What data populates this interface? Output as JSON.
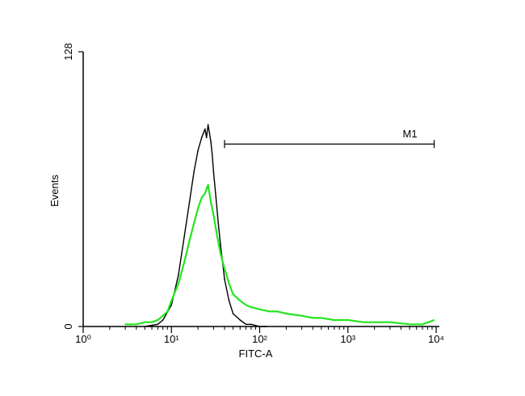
{
  "chart_data": {
    "type": "histogram",
    "xlabel": "FITC-A",
    "ylabel": "Events",
    "x_scale": "log",
    "xlim": [
      1,
      10000
    ],
    "ylim": [
      0,
      128
    ],
    "x_ticks": [
      {
        "value": 1,
        "label": "10⁰"
      },
      {
        "value": 10,
        "label": "10¹"
      },
      {
        "value": 100,
        "label": "10²"
      },
      {
        "value": 1000,
        "label": "10³"
      },
      {
        "value": 10000,
        "label": "10⁴"
      }
    ],
    "y_ticks": [
      {
        "value": 0,
        "label": "0"
      },
      {
        "value": 128,
        "label": "128"
      }
    ],
    "grid": false,
    "colors": {
      "control": "#000000",
      "sample": "#22e61e"
    },
    "series": [
      {
        "color": "#000000",
        "x": [
          5,
          7,
          8,
          10,
          12,
          14,
          16,
          18,
          20,
          22,
          24,
          25,
          26,
          27,
          28,
          29,
          30,
          32,
          34,
          36,
          38,
          40,
          45,
          50,
          60,
          70,
          80,
          100,
          120
        ],
        "y": [
          0,
          1,
          3,
          10,
          24,
          42,
          58,
          72,
          82,
          88,
          92,
          88,
          94,
          90,
          86,
          80,
          72,
          60,
          48,
          38,
          30,
          22,
          12,
          6,
          3,
          1,
          1,
          0,
          0
        ]
      },
      {
        "color": "#22e61e",
        "x": [
          3,
          4,
          5,
          6,
          7,
          8,
          9,
          10,
          12,
          14,
          16,
          18,
          20,
          22,
          24,
          26,
          28,
          30,
          33,
          36,
          40,
          45,
          50,
          60,
          70,
          80,
          100,
          130,
          160,
          200,
          300,
          400,
          500,
          700,
          1000,
          1500,
          2000,
          3000,
          5000,
          7000,
          9500
        ],
        "y": [
          1,
          1,
          2,
          2,
          3,
          5,
          7,
          12,
          20,
          30,
          40,
          48,
          55,
          60,
          62,
          66,
          58,
          52,
          42,
          34,
          27,
          20,
          15,
          12,
          10,
          9,
          8,
          7,
          7,
          6,
          5,
          4,
          4,
          3,
          3,
          2,
          2,
          2,
          1,
          1,
          3
        ]
      }
    ],
    "markers": [
      {
        "label": "M1",
        "x_start": 40,
        "x_end": 9500,
        "y": 85
      }
    ]
  }
}
